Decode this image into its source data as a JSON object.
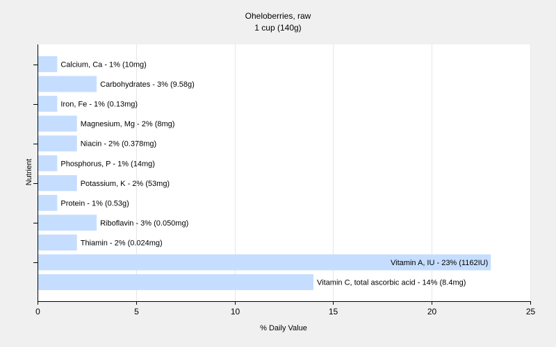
{
  "chart_data": {
    "type": "bar",
    "orientation": "horizontal",
    "title": "Oheloberries, raw",
    "subtitle": "1 cup (140g)",
    "xlabel": "% Daily Value",
    "ylabel": "Nutrient",
    "xlim": [
      0,
      25
    ],
    "xticks": [
      "0",
      "5",
      "10",
      "15",
      "20",
      "25"
    ],
    "grid": true,
    "bar_color": "#c5deff",
    "categories": [
      "Calcium, Ca",
      "Carbohydrates",
      "Iron, Fe",
      "Magnesium, Mg",
      "Niacin",
      "Phosphorus, P",
      "Potassium, K",
      "Protein",
      "Riboflavin",
      "Thiamin",
      "Vitamin A, IU",
      "Vitamin C, total ascorbic acid"
    ],
    "values": [
      1,
      3,
      1,
      2,
      2,
      1,
      2,
      1,
      3,
      2,
      23,
      14
    ],
    "labels": [
      "Calcium, Ca - 1% (10mg)",
      "Carbohydrates - 3% (9.58g)",
      "Iron, Fe - 1% (0.13mg)",
      "Magnesium, Mg - 2% (8mg)",
      "Niacin - 2% (0.378mg)",
      "Phosphorus, P - 1% (14mg)",
      "Potassium, K - 2% (53mg)",
      "Protein - 1% (0.53g)",
      "Riboflavin - 3% (0.050mg)",
      "Thiamin - 2% (0.024mg)",
      "Vitamin A, IU - 23% (1162IU)",
      "Vitamin C, total ascorbic acid - 14% (8.4mg)"
    ]
  }
}
